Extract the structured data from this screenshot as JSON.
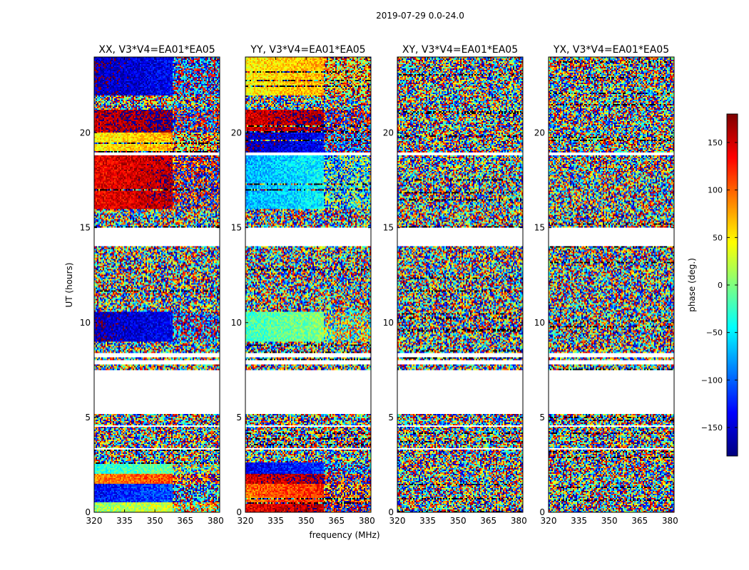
{
  "figure_title": "2019-07-29 0.0-24.0",
  "chart_data": {
    "type": "heatmap",
    "title": "2019-07-29 0.0-24.0",
    "xlabel": "frequency (MHz)",
    "ylabel": "UT (hours)",
    "xlim": [
      320,
      382
    ],
    "ylim": [
      0,
      24
    ],
    "xticks": [
      320,
      335,
      350,
      365,
      380
    ],
    "yticks": [
      0,
      5,
      10,
      15,
      20
    ],
    "colorbar": {
      "label": "phase (deg.)",
      "range": [
        -180,
        180
      ],
      "ticks": [
        150,
        100,
        50,
        0,
        -50,
        -100,
        -150
      ],
      "tick_labels": [
        "150",
        "100",
        "50",
        "0",
        "−50",
        "−100",
        "−150"
      ],
      "colormap": "jet"
    },
    "flagged_ut_ranges_hours": [
      [
        3.3,
        3.4
      ],
      [
        4.5,
        4.6
      ],
      [
        5.2,
        7.5
      ],
      [
        7.8,
        8.0
      ],
      [
        8.2,
        8.4
      ],
      [
        14.0,
        15.0
      ],
      [
        18.8,
        19.0
      ]
    ],
    "panels": [
      {
        "name": "XX",
        "title": "XX, V3*V4=EA01*EA05",
        "pattern": "coherent",
        "phase_bands": [
          {
            "ut": [
              0.0,
              0.5
            ],
            "phase": 20
          },
          {
            "ut": [
              0.5,
              1.5
            ],
            "phase": -120
          },
          {
            "ut": [
              1.5,
              2.0
            ],
            "phase": 100
          },
          {
            "ut": [
              2.0,
              2.6
            ],
            "phase": -20
          },
          {
            "ut": [
              9.0,
              10.6
            ],
            "phase": -150
          },
          {
            "ut": [
              16.0,
              18.8
            ],
            "phase": 150
          },
          {
            "ut": [
              19.0,
              20.0
            ],
            "phase": 60
          },
          {
            "ut": [
              20.0,
              21.2
            ],
            "phase": 170
          },
          {
            "ut": [
              22.0,
              24.0
            ],
            "phase": -150
          }
        ]
      },
      {
        "name": "YY",
        "title": "YY, V3*V4=EA01*EA05",
        "pattern": "coherent",
        "phase_bands": [
          {
            "ut": [
              0.0,
              0.5
            ],
            "phase": 150
          },
          {
            "ut": [
              0.5,
              1.5
            ],
            "phase": 110
          },
          {
            "ut": [
              1.5,
              2.0
            ],
            "phase": 160
          },
          {
            "ut": [
              2.0,
              2.6
            ],
            "phase": -130
          },
          {
            "ut": [
              9.0,
              10.6
            ],
            "phase": -10
          },
          {
            "ut": [
              16.0,
              18.8
            ],
            "phase": -60
          },
          {
            "ut": [
              19.0,
              20.0
            ],
            "phase": -150
          },
          {
            "ut": [
              20.0,
              21.2
            ],
            "phase": 160
          },
          {
            "ut": [
              22.0,
              24.0
            ],
            "phase": 60
          }
        ]
      },
      {
        "name": "XY",
        "title": "XY, V3*V4=EA01*EA05",
        "pattern": "noise",
        "phase_bands": []
      },
      {
        "name": "YX",
        "title": "YX, V3*V4=EA01*EA05",
        "pattern": "noise",
        "phase_bands": []
      }
    ]
  }
}
